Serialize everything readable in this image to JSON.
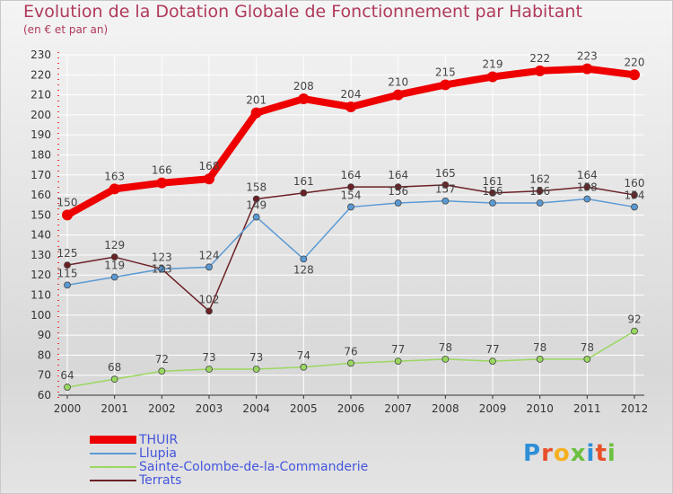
{
  "chart_data": {
    "type": "line",
    "title": "Evolution de la Dotation Globale de Fonctionnement par Habitant",
    "subtitle": "(en € et par an)",
    "xlabel": "",
    "ylabel": "",
    "ylim": [
      60,
      230
    ],
    "yticks": [
      60,
      70,
      80,
      90,
      100,
      110,
      120,
      130,
      140,
      150,
      160,
      170,
      180,
      190,
      200,
      210,
      220,
      230
    ],
    "categories": [
      "2000",
      "2001",
      "2002",
      "2003",
      "2004",
      "2005",
      "2006",
      "2007",
      "2008",
      "2009",
      "2010",
      "2011",
      "2012"
    ],
    "series": [
      {
        "name": "Terrats",
        "color": "#6b2025",
        "values": [
          125,
          129,
          123,
          102,
          158,
          161,
          164,
          164,
          165,
          161,
          162,
          164,
          160
        ]
      },
      {
        "name": "Llupia",
        "color": "#5a9ad4",
        "values": [
          115,
          119,
          123,
          124,
          149,
          128,
          154,
          156,
          157,
          156,
          156,
          158,
          154
        ]
      },
      {
        "name": "Sainte-Colombe-de-la-Commanderie",
        "color": "#9ad860",
        "values": [
          64,
          68,
          72,
          73,
          73,
          74,
          76,
          77,
          78,
          77,
          78,
          78,
          92
        ]
      },
      {
        "name": "THUIR",
        "color": "#ee0000",
        "values": [
          150,
          163,
          166,
          168,
          201,
          208,
          204,
          210,
          215,
          219,
          222,
          223,
          220
        ]
      }
    ],
    "legend": [
      "THUIR",
      "Llupia",
      "Sainte-Colombe-de-la-Commanderie",
      "Terrats"
    ],
    "legend_position": "bottom-left",
    "grid": true
  },
  "logo": {
    "text": "Proxiti",
    "letters": [
      "P",
      "r",
      "o",
      "x",
      "i",
      "t",
      "i"
    ],
    "colors": [
      "#2e8fd6",
      "#e8502a",
      "#f5b020",
      "#6cc040",
      "#2e8fd6",
      "#e8502a",
      "#6cc040"
    ]
  }
}
